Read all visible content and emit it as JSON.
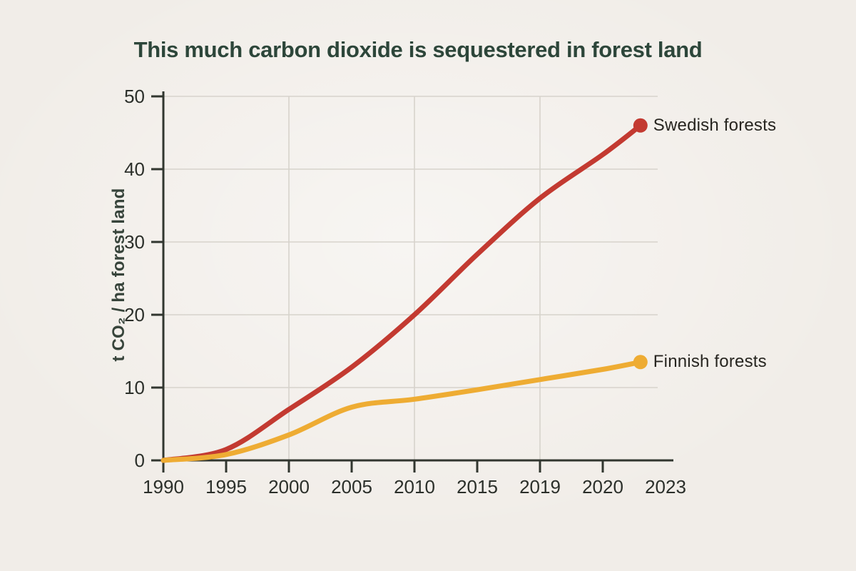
{
  "page": {
    "background_color": "#f1ede8"
  },
  "chart_data": {
    "type": "line",
    "title": "This much carbon dioxide is sequestered in forest land",
    "ylabel": "t CO₂ / ha forest land",
    "xlabel": "",
    "categories": [
      "1990",
      "1995",
      "2000",
      "2005",
      "2010",
      "2015",
      "2019",
      "2020",
      "2023"
    ],
    "y_ticks": [
      0,
      10,
      20,
      30,
      40,
      50
    ],
    "ylim": [
      0,
      50
    ],
    "grid": {
      "horizontal_values": [
        10,
        20,
        30,
        40,
        50
      ],
      "vertical_at_categories": [
        "2000",
        "2010",
        "2019"
      ]
    },
    "series": [
      {
        "name": "Swedish forests",
        "color": "#c33a31",
        "values": [
          0,
          1.5,
          7,
          12.8,
          20,
          28.3,
          36,
          42,
          46
        ]
      },
      {
        "name": "Finnish forests",
        "color": "#eeac33",
        "values": [
          0,
          0.8,
          3.5,
          7.3,
          8.4,
          9.7,
          11.1,
          12.5,
          13.5
        ]
      }
    ],
    "legend_position": "right-of-line-end",
    "end_dot": true,
    "end_x_fraction_of_last_gap": 0.6
  },
  "colors": {
    "title_text": "#2d463a",
    "axis_line": "#31362f",
    "tick_text": "#2b2f2a",
    "grid_line": "#d7d3cc",
    "legend_text": "#272520"
  }
}
